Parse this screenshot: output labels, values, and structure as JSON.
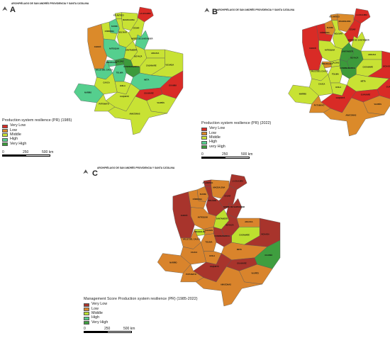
{
  "colors": {
    "very_low": "#d92b26",
    "low": "#db8a2a",
    "middle": "#c8e234",
    "high": "#55cf8e",
    "very_high": "#3c9a3b",
    "very_low_c": "#a8342c",
    "low_c": "#d9842c",
    "middle_c": "#bde02f",
    "high_c": "#59c98d",
    "very_high_c": "#3f9e3f"
  },
  "panels": [
    {
      "id": "A",
      "label": "A",
      "archipelago": "ARCHIPIÉLAGO DE SAN ANDRÉS PROVIDENCIA Y SANTA CATALINA",
      "legend_title": "Production system resilience (PR) (1985)",
      "legend_items": [
        "Very Low",
        "Low",
        "Middle",
        "High",
        "Very High"
      ],
      "scale": [
        "0",
        "250",
        "500 km"
      ],
      "regions": [
        {
          "name": "LA GUAJIRA",
          "cls": "very_low"
        },
        {
          "name": "ATLÁNTICO",
          "cls": "middle"
        },
        {
          "name": "MAGDALENA",
          "cls": "middle"
        },
        {
          "name": "CESAR",
          "cls": "middle"
        },
        {
          "name": "BOLÍVAR",
          "cls": "middle"
        },
        {
          "name": "SUCRE",
          "cls": "high"
        },
        {
          "name": "CÓRDOBA",
          "cls": "middle"
        },
        {
          "name": "NORTE DE SANTANDER",
          "cls": "high"
        },
        {
          "name": "ANTIOQUIA",
          "cls": "high"
        },
        {
          "name": "CHOCÓ",
          "cls": "low"
        },
        {
          "name": "SANTANDER",
          "cls": "middle"
        },
        {
          "name": "ARAUCA",
          "cls": "middle"
        },
        {
          "name": "BOYACÁ",
          "cls": "middle"
        },
        {
          "name": "CASANARE",
          "cls": "middle"
        },
        {
          "name": "CALDAS",
          "cls": "very_high"
        },
        {
          "name": "RISARALDA",
          "cls": "high"
        },
        {
          "name": "CUNDINAMARCA",
          "cls": "very_high"
        },
        {
          "name": "VALLE DEL CAUCA",
          "cls": "high"
        },
        {
          "name": "TOLIMA",
          "cls": "high"
        },
        {
          "name": "VICHADA",
          "cls": "middle"
        },
        {
          "name": "META",
          "cls": "high"
        },
        {
          "name": "HUILA",
          "cls": "middle"
        },
        {
          "name": "CAUCA",
          "cls": "middle"
        },
        {
          "name": "NARIÑO",
          "cls": "high"
        },
        {
          "name": "GUAINÍA",
          "cls": "very_low"
        },
        {
          "name": "GUAVIARE",
          "cls": "very_low"
        },
        {
          "name": "CAQUETÁ",
          "cls": "middle"
        },
        {
          "name": "PUTUMAYO",
          "cls": "middle"
        },
        {
          "name": "VAUPÉS",
          "cls": "middle"
        },
        {
          "name": "AMAZONAS",
          "cls": "middle"
        }
      ]
    },
    {
      "id": "B",
      "label": "B",
      "archipelago": "ARCHIPIÉLAGO DE SAN ANDRÉS PROVIDENCIA Y SANTA CATALINA",
      "legend_title": "Production system resilience (PR) (2022)",
      "legend_items": [
        "Very Low",
        "Low",
        "Middle",
        "High",
        "very High"
      ],
      "scale": [
        "0",
        "250",
        "500 km"
      ],
      "regions": [
        {
          "name": "LA GUAJIRA",
          "cls": "very_low"
        },
        {
          "name": "ATLÁNTICO",
          "cls": "low"
        },
        {
          "name": "MAGDALENA",
          "cls": "low"
        },
        {
          "name": "CESAR",
          "cls": "very_low"
        },
        {
          "name": "BOLÍVAR",
          "cls": "middle"
        },
        {
          "name": "SUCRE",
          "cls": "low"
        },
        {
          "name": "CÓRDOBA",
          "cls": "very_low"
        },
        {
          "name": "NORTE DE SANTANDER",
          "cls": "middle"
        },
        {
          "name": "ANTIOQUIA",
          "cls": "middle"
        },
        {
          "name": "CHOCÓ",
          "cls": "very_low"
        },
        {
          "name": "SANTANDER",
          "cls": "very_high"
        },
        {
          "name": "ARAUCA",
          "cls": "middle"
        },
        {
          "name": "BOYACÁ",
          "cls": "very_high"
        },
        {
          "name": "CASANARE",
          "cls": "middle"
        },
        {
          "name": "CALDAS",
          "cls": "middle"
        },
        {
          "name": "RISARALDA",
          "cls": "low"
        },
        {
          "name": "CUNDINAMARCA",
          "cls": "very_high"
        },
        {
          "name": "VALLE DEL CAUCA",
          "cls": "middle"
        },
        {
          "name": "TOLIMA",
          "cls": "middle"
        },
        {
          "name": "VICHADA",
          "cls": "very_low"
        },
        {
          "name": "META",
          "cls": "middle"
        },
        {
          "name": "HUILA",
          "cls": "middle"
        },
        {
          "name": "CAUCA",
          "cls": "middle"
        },
        {
          "name": "NARIÑO",
          "cls": "middle"
        },
        {
          "name": "GUAINÍA",
          "cls": "very_low"
        },
        {
          "name": "GUAVIARE",
          "cls": "very_low"
        },
        {
          "name": "CAQUETÁ",
          "cls": "very_low"
        },
        {
          "name": "PUTUMAYO",
          "cls": "low"
        },
        {
          "name": "VAUPÉS",
          "cls": "low"
        },
        {
          "name": "AMAZONAS",
          "cls": "low"
        }
      ]
    },
    {
      "id": "C",
      "label": "C",
      "archipelago": "ARCHIPIÉLAGO DE SAN ANDRÉS PROVIDENCIA Y SANTA CATALINA",
      "legend_title": "Management Score Production system resilience (PR) (1985-2022)",
      "legend_items": [
        "Very Low",
        "Low",
        "Middle",
        "High",
        "Very High"
      ],
      "scale": [
        "0",
        "250",
        "500 km"
      ],
      "regions": [
        {
          "name": "LA GUAJIRA",
          "cls": "very_low"
        },
        {
          "name": "ATLÁNTICO",
          "cls": "very_low"
        },
        {
          "name": "MAGDALENA",
          "cls": "low"
        },
        {
          "name": "CESAR",
          "cls": "very_low"
        },
        {
          "name": "BOLÍVAR",
          "cls": "very_low"
        },
        {
          "name": "SUCRE",
          "cls": "low"
        },
        {
          "name": "CÓRDOBA",
          "cls": "low"
        },
        {
          "name": "NORTE DE SANTANDER",
          "cls": "very_low"
        },
        {
          "name": "ANTIOQUIA",
          "cls": "low"
        },
        {
          "name": "CHOCÓ",
          "cls": "very_low"
        },
        {
          "name": "SANTANDER",
          "cls": "middle"
        },
        {
          "name": "ARAUCA",
          "cls": "low"
        },
        {
          "name": "BOYACÁ",
          "cls": "very_low"
        },
        {
          "name": "CASANARE",
          "cls": "middle"
        },
        {
          "name": "CALDAS",
          "cls": "low"
        },
        {
          "name": "RISARALDA",
          "cls": "middle"
        },
        {
          "name": "CUNDINAMARCA",
          "cls": "very_low"
        },
        {
          "name": "VALLE DEL CAUCA",
          "cls": "low"
        },
        {
          "name": "TOLIMA",
          "cls": "low"
        },
        {
          "name": "VICHADA",
          "cls": "very_low"
        },
        {
          "name": "META",
          "cls": "low"
        },
        {
          "name": "HUILA",
          "cls": "low"
        },
        {
          "name": "CAUCA",
          "cls": "low"
        },
        {
          "name": "NARIÑO",
          "cls": "low"
        },
        {
          "name": "GUAINÍA",
          "cls": "very_high"
        },
        {
          "name": "GUAVIARE",
          "cls": "very_low"
        },
        {
          "name": "CAQUETÁ",
          "cls": "very_low"
        },
        {
          "name": "PUTUMAYO",
          "cls": "low"
        },
        {
          "name": "VAUPÉS",
          "cls": "low"
        },
        {
          "name": "AMAZONAS",
          "cls": "low"
        }
      ]
    }
  ]
}
